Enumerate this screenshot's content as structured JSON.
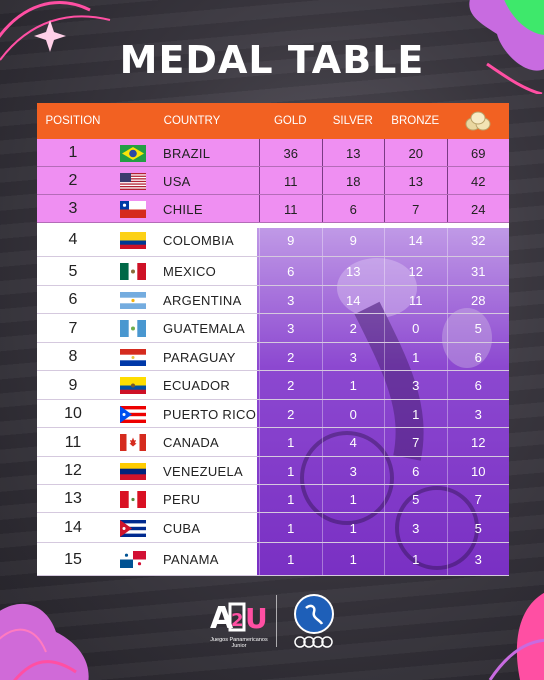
{
  "title": "MEDAL TABLE",
  "headers": {
    "position": "POSITION",
    "country": "COUNTRY",
    "gold": "GOLD",
    "silver": "SILVER",
    "bronze": "BRONZE",
    "total_icon": "medals-stack-icon"
  },
  "rows": [
    {
      "position": "1",
      "flag": "brazil-flag-icon",
      "country": "BRAZIL",
      "gold": "36",
      "silver": "13",
      "bronze": "20",
      "total": "69"
    },
    {
      "position": "2",
      "flag": "usa-flag-icon",
      "country": "USA",
      "gold": "11",
      "silver": "18",
      "bronze": "13",
      "total": "42"
    },
    {
      "position": "3",
      "flag": "chile-flag-icon",
      "country": "CHILE",
      "gold": "11",
      "silver": "6",
      "bronze": "7",
      "total": "24"
    },
    {
      "position": "4",
      "flag": "colombia-flag-icon",
      "country": "COLOMBIA",
      "gold": "9",
      "silver": "9",
      "bronze": "14",
      "total": "32"
    },
    {
      "position": "5",
      "flag": "mexico-flag-icon",
      "country": "MEXICO",
      "gold": "6",
      "silver": "13",
      "bronze": "12",
      "total": "31"
    },
    {
      "position": "6",
      "flag": "argentina-flag-icon",
      "country": "ARGENTINA",
      "gold": "3",
      "silver": "14",
      "bronze": "11",
      "total": "28"
    },
    {
      "position": "7",
      "flag": "guatemala-flag-icon",
      "country": "GUATEMALA",
      "gold": "3",
      "silver": "2",
      "bronze": "0",
      "total": "5"
    },
    {
      "position": "8",
      "flag": "paraguay-flag-icon",
      "country": "PARAGUAY",
      "gold": "2",
      "silver": "3",
      "bronze": "1",
      "total": "6"
    },
    {
      "position": "9",
      "flag": "ecuador-flag-icon",
      "country": "ECUADOR",
      "gold": "2",
      "silver": "1",
      "bronze": "3",
      "total": "6"
    },
    {
      "position": "10",
      "flag": "puerto-rico-flag-icon",
      "country": "PUERTO RICO",
      "gold": "2",
      "silver": "0",
      "bronze": "1",
      "total": "3"
    },
    {
      "position": "11",
      "flag": "canada-flag-icon",
      "country": "CANADA",
      "gold": "1",
      "silver": "4",
      "bronze": "7",
      "total": "12"
    },
    {
      "position": "12",
      "flag": "venezuela-flag-icon",
      "country": "VENEZUELA",
      "gold": "1",
      "silver": "3",
      "bronze": "6",
      "total": "10"
    },
    {
      "position": "13",
      "flag": "peru-flag-icon",
      "country": "PERU",
      "gold": "1",
      "silver": "1",
      "bronze": "5",
      "total": "7"
    },
    {
      "position": "14",
      "flag": "cuba-flag-icon",
      "country": "CUBA",
      "gold": "1",
      "silver": "1",
      "bronze": "3",
      "total": "5"
    },
    {
      "position": "15",
      "flag": "panama-flag-icon",
      "country": "PANAMA",
      "gold": "1",
      "silver": "1",
      "bronze": "1",
      "total": "3"
    }
  ],
  "footer": {
    "asu_logo": "ASU",
    "asu_caption_line1": "Juegos Panamericanos",
    "asu_caption_line2": "Junior",
    "panam_logo": "panam-sports-logo"
  },
  "colors": {
    "header_bg": "#f26122",
    "top3_bg": "#ef8ff2",
    "overlay_purple": "#7a2ac8",
    "title_color": "#ffffff"
  }
}
